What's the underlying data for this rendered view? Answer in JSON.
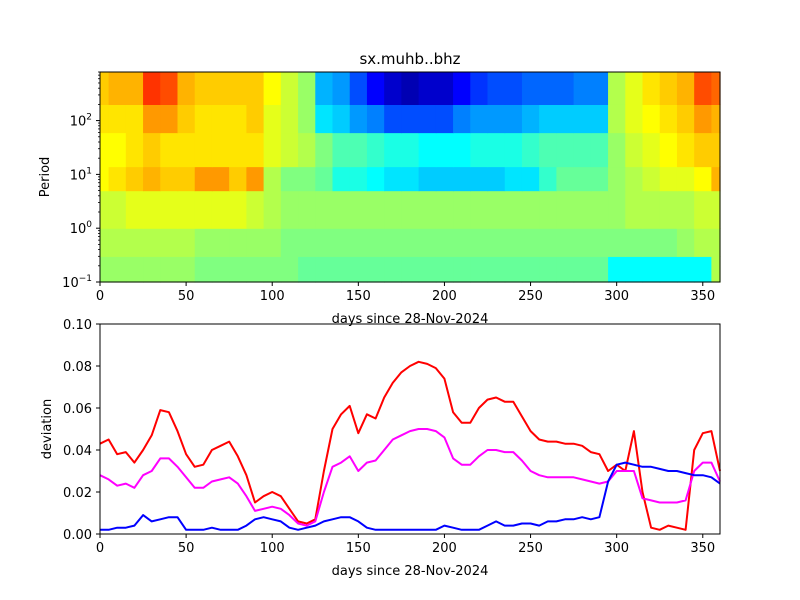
{
  "chart_data": [
    {
      "type": "heatmap",
      "title": "sx.muhb..bhz",
      "xlabel": "days since 28-Nov-2024",
      "ylabel": "Period",
      "xlim": [
        0,
        360
      ],
      "ylim": [
        0.1,
        800
      ],
      "yscale": "log",
      "xticks": [
        0,
        50,
        100,
        150,
        200,
        250,
        300,
        350
      ],
      "yticks": [
        {
          "value": 0.1,
          "base": "10",
          "exp": "−1"
        },
        {
          "value": 1,
          "base": "10",
          "exp": "0"
        },
        {
          "value": 10,
          "base": "10",
          "exp": "1"
        },
        {
          "value": 100,
          "base": "10",
          "exp": "2"
        }
      ],
      "colormap": "jet",
      "clim": [
        -1,
        1
      ],
      "period_bands": [
        {
          "range": [
            0.1,
            0.3
          ],
          "values": [
            0.05,
            0.05,
            0.05,
            0.05,
            0.05,
            0.05,
            0.0,
            0.0,
            0.0,
            0.0,
            0.0,
            0.0,
            -0.05,
            -0.05,
            -0.05,
            -0.05,
            -0.05,
            -0.05,
            -0.05,
            -0.05,
            -0.05,
            -0.05,
            -0.05,
            -0.05,
            -0.05,
            -0.05,
            -0.05,
            -0.05,
            -0.05,
            -0.05,
            -0.25,
            -0.25,
            -0.25,
            -0.25,
            -0.25,
            -0.25,
            0.1
          ]
        },
        {
          "range": [
            0.3,
            1
          ],
          "values": [
            0.1,
            0.1,
            0.1,
            0.1,
            0.1,
            0.1,
            0.05,
            0.05,
            0.05,
            0.05,
            0.05,
            0.0,
            0.0,
            0.0,
            0.0,
            0.0,
            0.0,
            0.0,
            0.0,
            0.0,
            0.0,
            0.0,
            0.0,
            0.0,
            0.0,
            0.0,
            0.0,
            0.0,
            0.0,
            0.0,
            0.0,
            0.0,
            0.0,
            0.0,
            0.05,
            0.1,
            0.1
          ]
        },
        {
          "range": [
            1,
            5
          ],
          "values": [
            0.15,
            0.15,
            0.2,
            0.2,
            0.2,
            0.2,
            0.2,
            0.2,
            0.2,
            0.15,
            0.1,
            0.05,
            0.05,
            0.05,
            0.05,
            0.05,
            0.05,
            0.05,
            0.05,
            0.05,
            0.05,
            0.05,
            0.05,
            0.05,
            0.05,
            0.05,
            0.05,
            0.05,
            0.05,
            0.05,
            0.05,
            0.1,
            0.1,
            0.1,
            0.1,
            0.15,
            0.15
          ]
        },
        {
          "range": [
            5,
            14
          ],
          "values": [
            0.25,
            0.3,
            0.35,
            0.4,
            0.35,
            0.35,
            0.45,
            0.45,
            0.35,
            0.45,
            0.1,
            0.0,
            0.0,
            -0.05,
            -0.2,
            -0.2,
            -0.25,
            -0.3,
            -0.3,
            -0.35,
            -0.35,
            -0.35,
            -0.35,
            -0.35,
            -0.3,
            -0.3,
            -0.15,
            -0.05,
            -0.05,
            -0.05,
            0.05,
            0.1,
            0.15,
            0.2,
            0.2,
            0.25,
            0.4
          ]
        },
        {
          "range": [
            14,
            60
          ],
          "values": [
            0.25,
            0.25,
            0.3,
            0.35,
            0.3,
            0.3,
            0.3,
            0.3,
            0.3,
            0.3,
            0.2,
            0.15,
            0.1,
            0.0,
            -0.1,
            -0.1,
            -0.15,
            -0.2,
            -0.2,
            -0.25,
            -0.25,
            -0.25,
            -0.2,
            -0.2,
            -0.2,
            -0.15,
            -0.1,
            -0.1,
            -0.1,
            -0.1,
            0.05,
            0.15,
            0.2,
            0.25,
            0.3,
            0.35,
            0.35
          ]
        },
        {
          "range": [
            60,
            200
          ],
          "values": [
            0.3,
            0.3,
            0.3,
            0.45,
            0.45,
            0.35,
            0.3,
            0.3,
            0.3,
            0.35,
            0.2,
            0.15,
            0.05,
            -0.3,
            -0.35,
            -0.45,
            -0.5,
            -0.6,
            -0.6,
            -0.6,
            -0.6,
            -0.5,
            -0.45,
            -0.45,
            -0.45,
            -0.4,
            -0.35,
            -0.35,
            -0.35,
            -0.35,
            0.1,
            0.2,
            0.25,
            0.3,
            0.35,
            0.45,
            0.4
          ]
        },
        {
          "range": [
            200,
            800
          ],
          "values": [
            0.35,
            0.4,
            0.4,
            0.65,
            0.6,
            0.4,
            0.35,
            0.35,
            0.35,
            0.35,
            0.25,
            0.15,
            0.05,
            -0.4,
            -0.45,
            -0.6,
            -0.75,
            -0.85,
            -0.9,
            -0.85,
            -0.85,
            -0.75,
            -0.65,
            -0.6,
            -0.6,
            -0.55,
            -0.55,
            -0.55,
            -0.5,
            -0.5,
            0.1,
            0.2,
            0.3,
            0.35,
            0.4,
            0.6,
            0.55
          ]
        }
      ]
    },
    {
      "type": "line",
      "xlabel": "days since 28-Nov-2024",
      "ylabel": "deviation",
      "xlim": [
        0,
        360
      ],
      "ylim": [
        0,
        0.1
      ],
      "xticks": [
        0,
        50,
        100,
        150,
        200,
        250,
        300,
        350
      ],
      "yticks": [
        "0.00",
        "0.02",
        "0.04",
        "0.06",
        "0.08",
        "0.10"
      ],
      "x": [
        0,
        5,
        10,
        15,
        20,
        25,
        30,
        35,
        40,
        45,
        50,
        55,
        60,
        65,
        70,
        75,
        80,
        85,
        90,
        95,
        100,
        105,
        110,
        115,
        120,
        125,
        130,
        135,
        140,
        145,
        150,
        155,
        160,
        165,
        170,
        175,
        180,
        185,
        190,
        195,
        200,
        205,
        210,
        215,
        220,
        225,
        230,
        235,
        240,
        245,
        250,
        255,
        260,
        265,
        270,
        275,
        280,
        285,
        290,
        295,
        300,
        305,
        310,
        315,
        320,
        325,
        330,
        335,
        340,
        345,
        350,
        355,
        360
      ],
      "series": [
        {
          "name": "red",
          "color": "#ff0000",
          "values": [
            0.043,
            0.045,
            0.038,
            0.039,
            0.034,
            0.04,
            0.047,
            0.059,
            0.058,
            0.049,
            0.038,
            0.032,
            0.033,
            0.04,
            0.042,
            0.044,
            0.037,
            0.028,
            0.015,
            0.018,
            0.02,
            0.018,
            0.012,
            0.006,
            0.005,
            0.007,
            0.03,
            0.05,
            0.057,
            0.061,
            0.048,
            0.057,
            0.055,
            0.065,
            0.072,
            0.077,
            0.08,
            0.082,
            0.081,
            0.079,
            0.074,
            0.058,
            0.053,
            0.053,
            0.06,
            0.064,
            0.065,
            0.063,
            0.063,
            0.056,
            0.049,
            0.045,
            0.044,
            0.044,
            0.043,
            0.043,
            0.042,
            0.039,
            0.038,
            0.03,
            0.033,
            0.03,
            0.049,
            0.02,
            0.003,
            0.002,
            0.004,
            0.003,
            0.002,
            0.04,
            0.048,
            0.049,
            0.03
          ]
        },
        {
          "name": "magenta",
          "color": "#ff00ff",
          "values": [
            0.028,
            0.026,
            0.023,
            0.024,
            0.022,
            0.028,
            0.03,
            0.036,
            0.036,
            0.032,
            0.027,
            0.022,
            0.022,
            0.025,
            0.026,
            0.027,
            0.024,
            0.018,
            0.011,
            0.012,
            0.013,
            0.012,
            0.009,
            0.005,
            0.004,
            0.006,
            0.02,
            0.032,
            0.034,
            0.037,
            0.03,
            0.034,
            0.035,
            0.04,
            0.045,
            0.047,
            0.049,
            0.05,
            0.05,
            0.049,
            0.046,
            0.036,
            0.033,
            0.033,
            0.037,
            0.04,
            0.04,
            0.039,
            0.039,
            0.035,
            0.03,
            0.028,
            0.027,
            0.027,
            0.027,
            0.027,
            0.026,
            0.025,
            0.024,
            0.025,
            0.03,
            0.03,
            0.03,
            0.017,
            0.016,
            0.015,
            0.015,
            0.015,
            0.016,
            0.03,
            0.034,
            0.034,
            0.025
          ]
        },
        {
          "name": "blue",
          "color": "#0000ff",
          "values": [
            0.002,
            0.002,
            0.003,
            0.003,
            0.004,
            0.009,
            0.006,
            0.007,
            0.008,
            0.008,
            0.002,
            0.002,
            0.002,
            0.003,
            0.002,
            0.002,
            0.002,
            0.004,
            0.007,
            0.008,
            0.007,
            0.006,
            0.003,
            0.002,
            0.003,
            0.004,
            0.006,
            0.007,
            0.008,
            0.008,
            0.006,
            0.003,
            0.002,
            0.002,
            0.002,
            0.002,
            0.002,
            0.002,
            0.002,
            0.002,
            0.004,
            0.003,
            0.002,
            0.002,
            0.002,
            0.004,
            0.006,
            0.004,
            0.004,
            0.005,
            0.005,
            0.004,
            0.006,
            0.006,
            0.007,
            0.007,
            0.008,
            0.007,
            0.008,
            0.025,
            0.033,
            0.034,
            0.033,
            0.032,
            0.032,
            0.031,
            0.03,
            0.03,
            0.029,
            0.028,
            0.028,
            0.027,
            0.024
          ]
        }
      ]
    }
  ]
}
